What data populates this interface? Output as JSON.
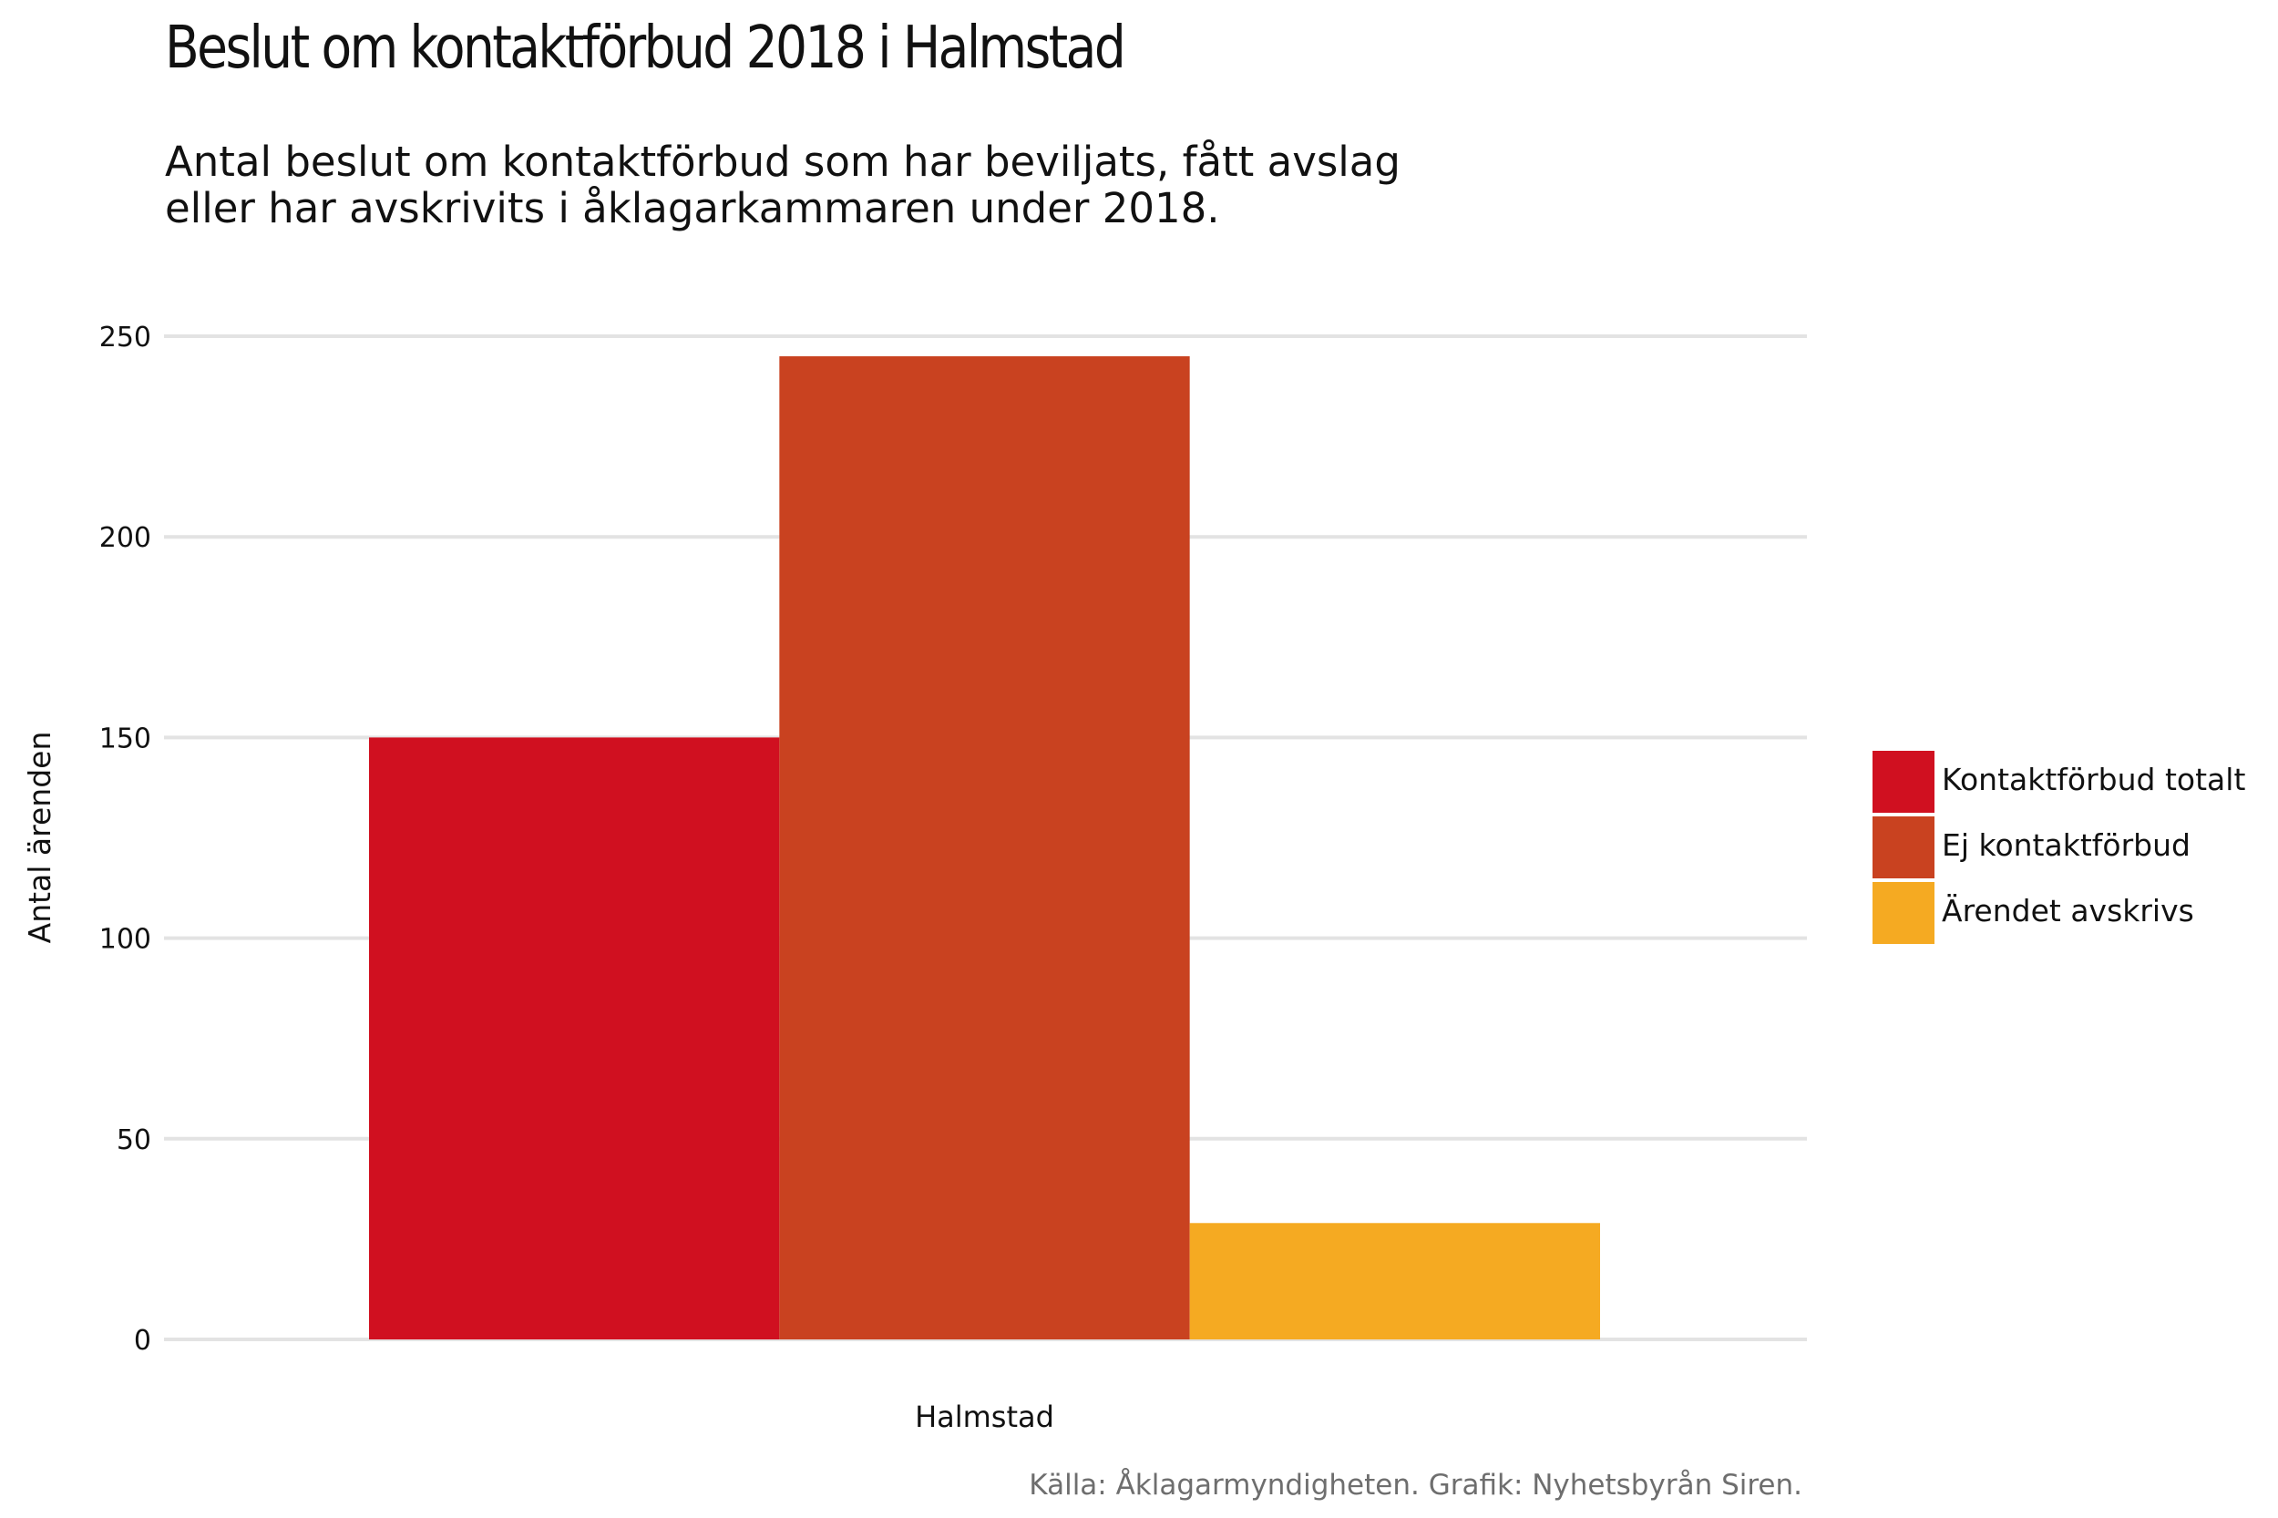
{
  "chart_data": {
    "type": "bar",
    "title": "Beslut om kontaktförbud 2018 i Halmstad",
    "subtitle_lines": [
      "Antal beslut om kontaktförbud som har beviljats, fått avslag",
      "eller har avskrivits i åklagarkammaren under 2018."
    ],
    "xlabel": "",
    "ylabel": "Antal ärenden",
    "categories": [
      "Halmstad"
    ],
    "series": [
      {
        "name": "Kontaktförbud totalt",
        "values": [
          150
        ],
        "color": "#d01020"
      },
      {
        "name": "Ej kontaktförbud",
        "values": [
          245
        ],
        "color": "#c94220"
      },
      {
        "name": "Ärendet avskrivs",
        "values": [
          29
        ],
        "color": "#f5aa22"
      }
    ],
    "ylim": [
      0,
      250
    ],
    "yticks": [
      0,
      50,
      100,
      150,
      200,
      250
    ],
    "grid": "horizontal",
    "gridline_color": "#e3e3e3",
    "legend_position": "right",
    "caption": "Källa: Åklagarmyndigheten. Grafik: Nyhetsbyrån Siren."
  }
}
